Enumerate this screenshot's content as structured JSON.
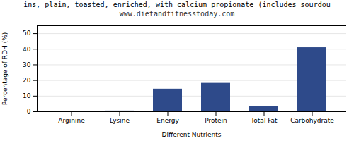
{
  "chart_data": {
    "type": "bar",
    "title": "ins, plain, toasted, enriched, with calcium propionate (includes sourdou",
    "subtitle": "www.dietandfitnesstoday.com",
    "categories": [
      "Arginine",
      "Lysine",
      "Energy",
      "Protein",
      "Total Fat",
      "Carbohydrate"
    ],
    "values": [
      0.3,
      0.5,
      14.5,
      18.2,
      3.2,
      41.0
    ],
    "color": "#2e4a8a",
    "xlabel": "Different Nutrients",
    "ylabel": "Percentage of RDH (%)",
    "ylim": [
      0,
      55
    ],
    "yticks": [
      0,
      10,
      20,
      30,
      40,
      50
    ],
    "grid": true
  }
}
